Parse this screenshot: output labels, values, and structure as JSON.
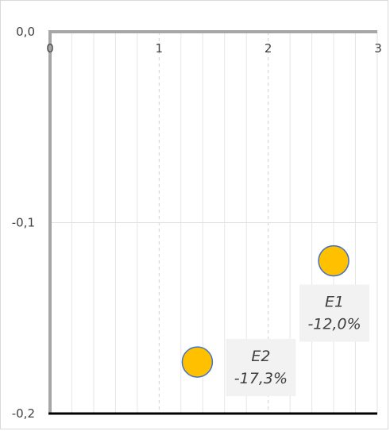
{
  "chart_data": {
    "type": "scatter",
    "title": "",
    "xlabel": "",
    "ylabel": "",
    "xlim": [
      0,
      3
    ],
    "ylim": [
      -0.2,
      0
    ],
    "x_ticks": [
      "0",
      "1",
      "2",
      "3"
    ],
    "y_ticks": [
      "0,0",
      "-0,1",
      "-0,2"
    ],
    "grid": true,
    "x_axis_position": "top",
    "points": [
      {
        "name": "E1",
        "x": 2.6,
        "y": -0.12,
        "label": "-12,0%"
      },
      {
        "name": "E2",
        "x": 1.35,
        "y": -0.173,
        "label": "-17,3%"
      }
    ],
    "marker_color": "#ffc000",
    "marker_edge_color": "#4472c4",
    "label_background": "#f2f2f2"
  }
}
